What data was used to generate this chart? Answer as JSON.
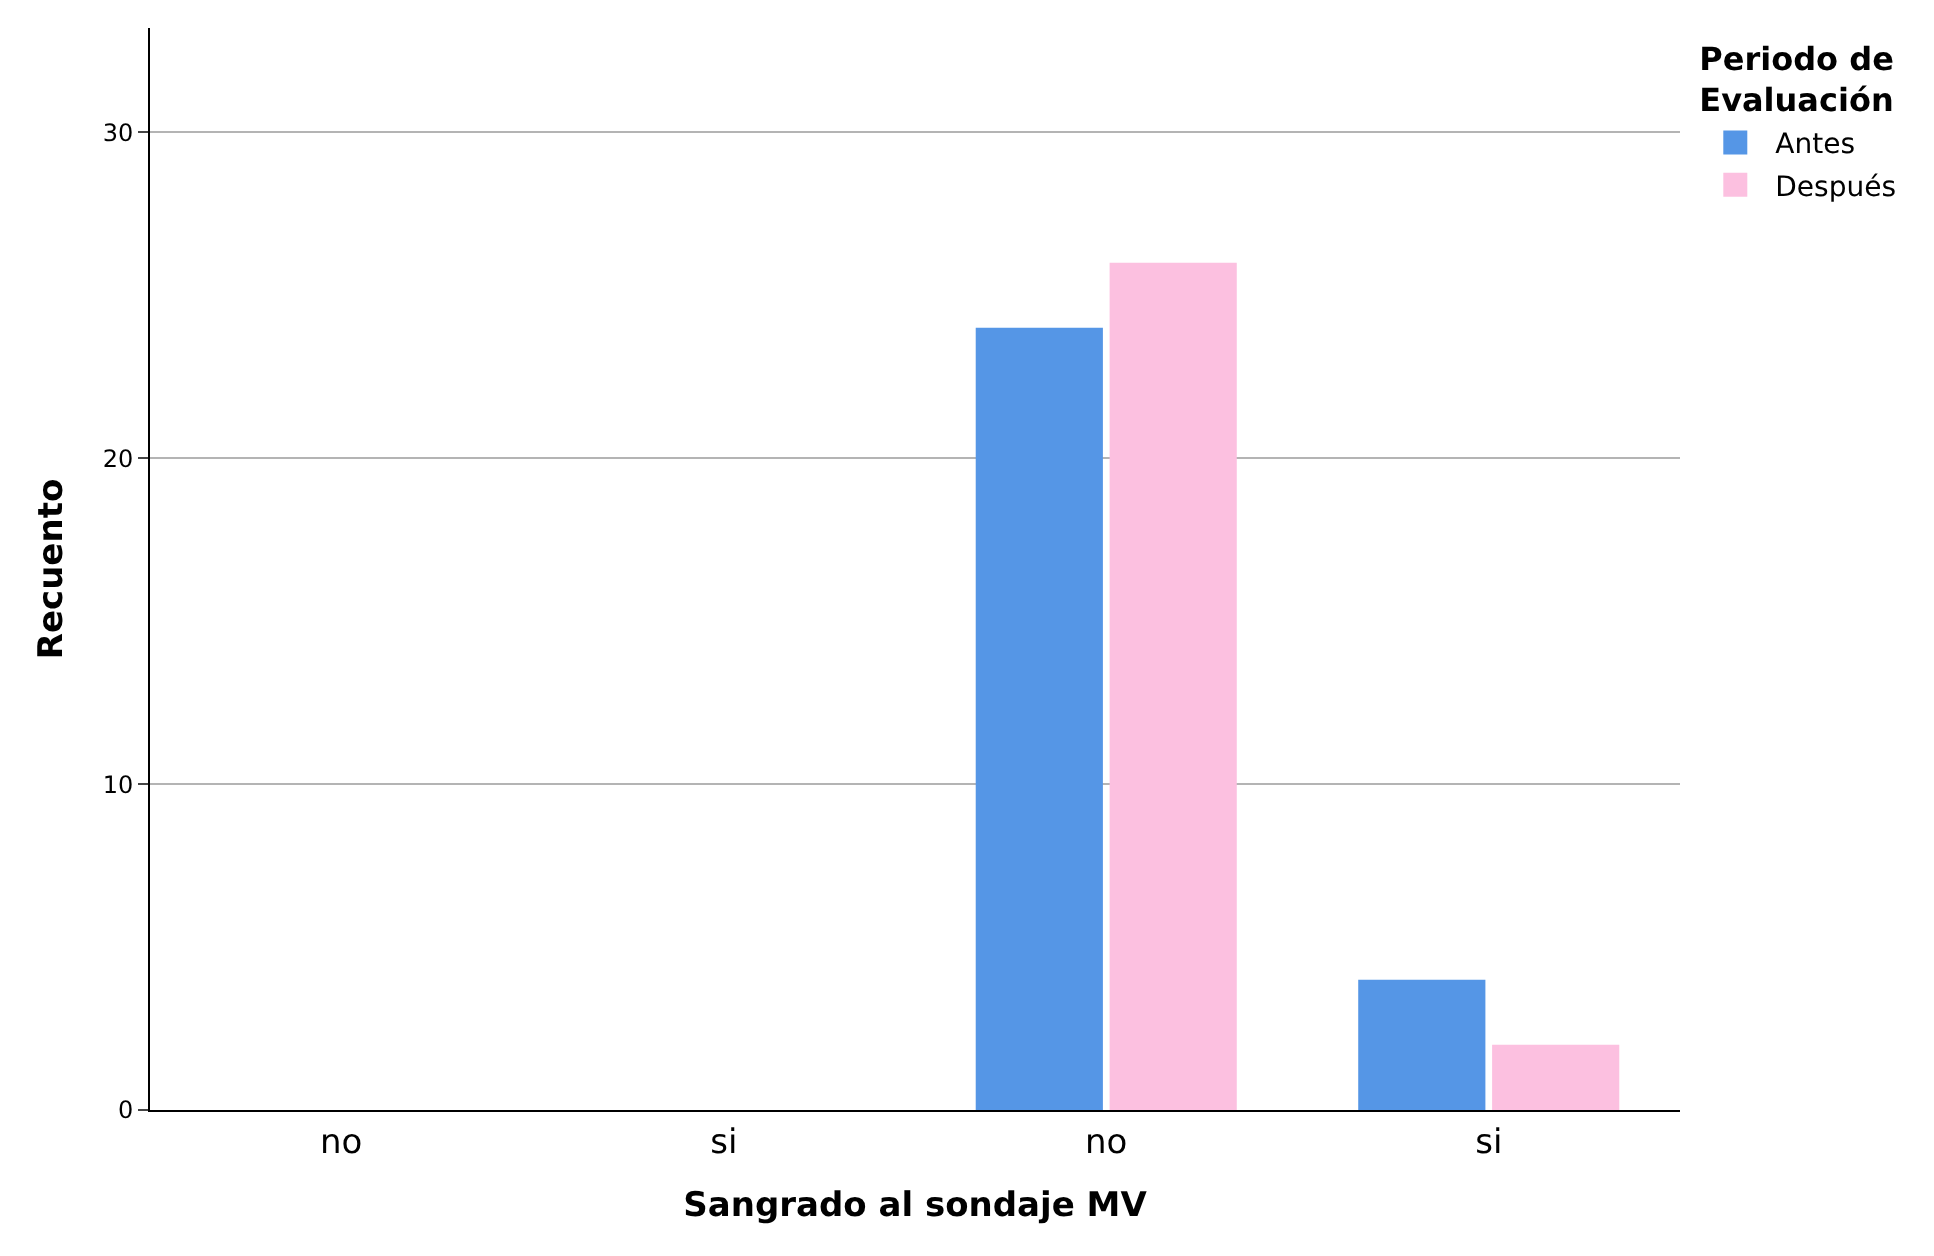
{
  "chart_data": {
    "type": "bar",
    "xlabel": "Sangrado al sondaje MV",
    "ylabel": "Recuento",
    "legend_title": "Periodo de\nEvaluación",
    "categories": [
      "no",
      "si",
      "no",
      "si"
    ],
    "series": [
      {
        "name": "Antes",
        "color": "#5596e6",
        "values": [
          null,
          null,
          24,
          4
        ]
      },
      {
        "name": "Después",
        "color": "#fcc0e0",
        "values": [
          null,
          null,
          26,
          2
        ]
      }
    ],
    "ylim": [
      0,
      33.2
    ],
    "yticks": [
      0,
      10,
      20,
      30
    ],
    "grid": "y",
    "legend": "top right"
  }
}
